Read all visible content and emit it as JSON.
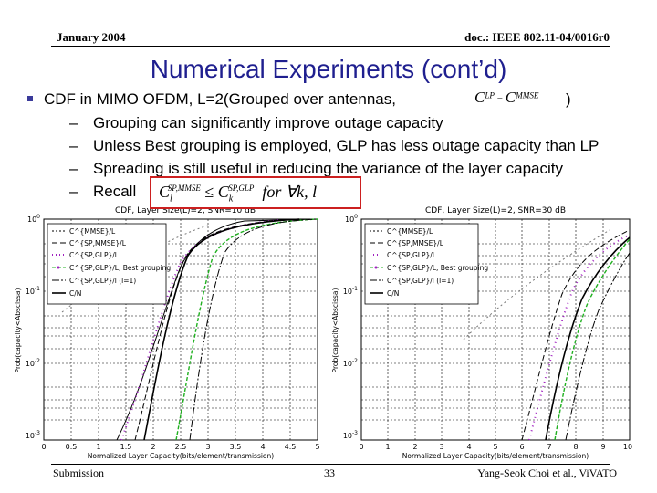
{
  "header": {
    "left": "January 2004",
    "right": "doc.: IEEE 802.11-04/0016r0"
  },
  "title": "Numerical Experiments (cont’d)",
  "main_bullet": {
    "text": "CDF in MIMO OFDM, L=2(Grouped over antennas,",
    "closing": ")"
  },
  "equation_inline": "C^{LP} = C^{MMSE}",
  "sub_bullets": [
    {
      "dash": "–",
      "text": "Grouping can significantly improve outage capacity"
    },
    {
      "dash": "–",
      "text": "Unless Best grouping is employed, GLP has less outage capacity than LP"
    },
    {
      "dash": "–",
      "text": "Spreading is still useful in reducing the variance of the layer capacity"
    },
    {
      "dash": "–",
      "text": "Recall"
    }
  ],
  "recall_equation": "C_l^{SP,MMSE} ≤ C_k^{SP,GLP} for ∀ k, l",
  "plots": [
    {
      "title": "CDF, Layer Size(L)=2, SNR=10 dB",
      "xlabel": "Normalized Layer Capacity(bits/element/transmission)",
      "ylabel": "Prob(capacity<Abscissa)",
      "xticks": [
        "0",
        "0.5",
        "1",
        "1.5",
        "2",
        "2.5",
        "3",
        "3.5",
        "4",
        "4.5",
        "5"
      ],
      "yticks": [
        "10^0",
        "10^-1",
        "10^-2",
        "10^-3"
      ],
      "legend": [
        "C^{MMSE}/L",
        "C^{SP,MMSE}/L",
        "C^{SP,GLP}/l",
        "C^{SP,GLP}/L, Best grouping",
        "C^{SP,GLP}/l (l=1)",
        "C/N"
      ]
    },
    {
      "title": "CDF, Layer Size(L)=2, SNR=30 dB",
      "xlabel": "Normalized Layer Capacity(bits/element/transmission)",
      "ylabel": "Prob(capacity<Abscissa)",
      "xticks": [
        "0",
        "1",
        "2",
        "3",
        "4",
        "5",
        "6",
        "7",
        "8",
        "9",
        "10"
      ],
      "yticks": [
        "10^0",
        "10^-1",
        "10^-2",
        "10^-3"
      ],
      "legend": [
        "C^{MMSE}/L",
        "C^{SP,MMSE}/L",
        "C^{SP,GLP}/L",
        "C^{SP,GLP}/L, Best grouping",
        "C^{SP,GLP}/l (l=1)",
        "C/N"
      ]
    }
  ],
  "footer": {
    "left": "Submission",
    "center": "33",
    "right": "Yang-Seok Choi et al., ViVATO"
  },
  "colors": {
    "title": "#1f1f8f",
    "recall_box": "#cc2020",
    "series_green": "#20b020",
    "series_purple": "#a020c0"
  }
}
